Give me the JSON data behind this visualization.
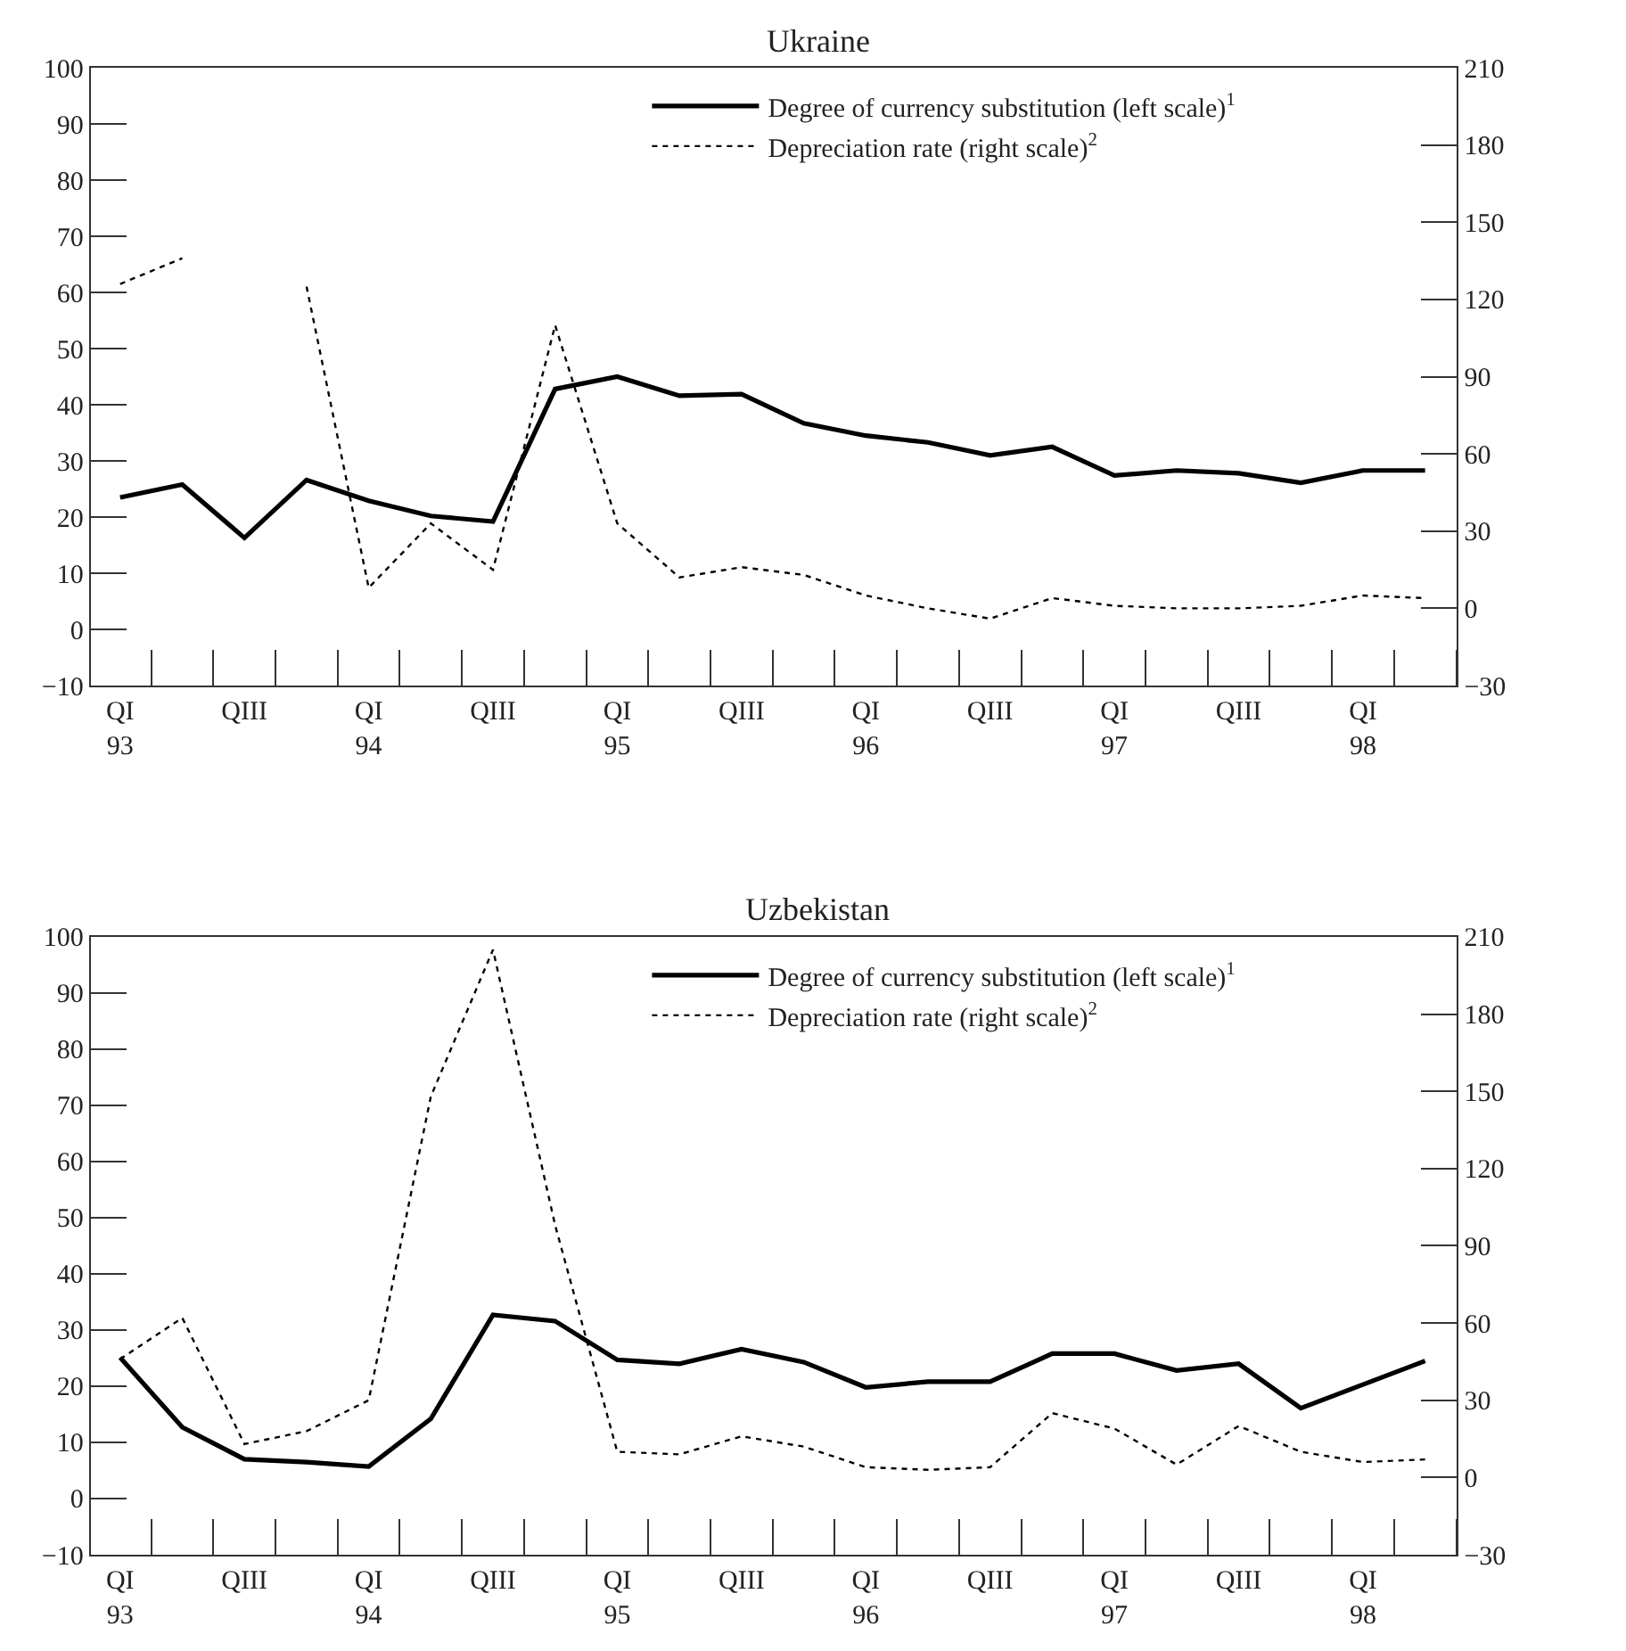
{
  "chart_data": [
    {
      "type": "line",
      "title": "Ukraine",
      "categories": [
        "QI\n93",
        null,
        "QIII",
        null,
        "QI\n94",
        null,
        "QIII",
        null,
        "QI\n95",
        null,
        "QIII",
        null,
        "QI\n96",
        null,
        "QIII",
        null,
        "QI\n97",
        null,
        "QIII",
        null,
        "QI\n98",
        null
      ],
      "ylim": [
        -10,
        100
      ],
      "yticks": [
        -10,
        0,
        10,
        20,
        30,
        40,
        50,
        60,
        70,
        80,
        90,
        100
      ],
      "y2lim": [
        -30,
        210
      ],
      "y2ticks": [
        -30,
        0,
        30,
        60,
        90,
        120,
        150,
        180,
        210
      ],
      "legend": "top right",
      "series": [
        {
          "name": "Degree of currency substitution (left scale)$^{1}$",
          "color": "#000000",
          "line_style": "solid",
          "values": [
            23.5,
            25.8,
            16.3,
            26.6,
            22.9,
            20.2,
            19.2,
            42.8,
            45.0,
            41.6,
            41.9,
            36.7,
            34.5,
            33.3,
            31.0,
            32.5,
            27.4,
            28.3,
            27.8,
            26.1,
            28.3,
            28.3
          ]
        },
        {
          "name": "Depreciation rate (right scale)$^{2}$",
          "color": "#000000",
          "line_style": "dotted",
          "axis": "y2",
          "values": [
            126,
            136,
            null,
            125,
            8,
            33,
            15,
            110,
            33,
            12,
            16,
            13,
            5,
            0,
            -4,
            4,
            1,
            0,
            0,
            1,
            5,
            4
          ]
        }
      ]
    },
    {
      "type": "line",
      "title": "Uzbekistan",
      "categories": [
        "QI\n93",
        null,
        "QIII",
        null,
        "QI\n94",
        null,
        "QIII",
        null,
        "QI\n95",
        null,
        "QIII",
        null,
        "QI\n96",
        null,
        "QIII",
        null,
        "QI\n97",
        null,
        "QIII",
        null,
        "QI\n98",
        null
      ],
      "ylim": [
        -10,
        100
      ],
      "yticks": [
        -10,
        0,
        10,
        20,
        30,
        40,
        50,
        60,
        70,
        80,
        90,
        100
      ],
      "y2lim": [
        -30,
        210
      ],
      "y2ticks": [
        -30,
        0,
        30,
        60,
        90,
        120,
        150,
        180,
        210
      ],
      "legend": "top right",
      "series": [
        {
          "name": "Degree of currency substitution (left scale)$^{1}$",
          "color": "#000000",
          "line_style": "solid",
          "values": [
            25.1,
            12.7,
            7.0,
            6.5,
            5.7,
            14.2,
            32.7,
            31.6,
            24.7,
            24.0,
            26.6,
            24.3,
            19.8,
            20.8,
            20.8,
            25.8,
            25.8,
            22.8,
            24.0,
            16.1,
            20.3,
            24.5
          ]
        },
        {
          "name": "Depreciation rate (right scale)$^{2}$",
          "color": "#000000",
          "line_style": "dotted",
          "axis": "y2",
          "values": [
            46,
            62,
            13,
            18,
            30,
            148,
            205,
            98,
            10,
            9,
            16,
            12,
            4,
            3,
            4,
            25,
            19,
            5,
            20,
            10,
            6,
            7
          ]
        }
      ]
    }
  ]
}
